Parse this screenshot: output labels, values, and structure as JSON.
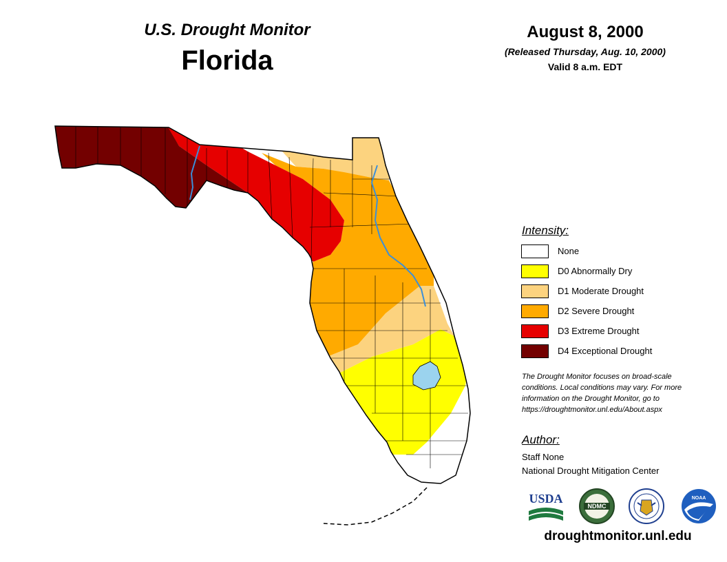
{
  "header": {
    "product_title": "U.S. Drought Monitor",
    "state_name": "Florida",
    "map_date": "August 8, 2000",
    "released": "(Released Thursday, Aug. 10, 2000)",
    "valid": "Valid 8 a.m. EDT"
  },
  "legend": {
    "title": "Intensity:",
    "items": [
      {
        "label": "None",
        "color": "#ffffff"
      },
      {
        "label": "D0 Abnormally Dry",
        "color": "#ffff00"
      },
      {
        "label": "D1 Moderate Drought",
        "color": "#fcd37f"
      },
      {
        "label": "D2 Severe Drought",
        "color": "#ffaa00"
      },
      {
        "label": "D3 Extreme Drought",
        "color": "#e60000"
      },
      {
        "label": "D4 Exceptional Drought",
        "color": "#730000"
      }
    ]
  },
  "note": {
    "line1": "The Drought Monitor focuses on broad-scale",
    "line2": "conditions. Local conditions may vary. For more",
    "line3": "information on the Drought Monitor, go to",
    "line4": "https://droughtmonitor.unl.edu/About.aspx"
  },
  "author": {
    "title": "Author:",
    "name": "Staff None",
    "organization": "National Drought Mitigation Center"
  },
  "logos": {
    "usda": "USDA",
    "ndmc": "NDMC",
    "doc": "commerce-seal",
    "noaa": "NOAA"
  },
  "footer": {
    "url": "droughtmonitor.unl.edu"
  },
  "map_colors": {
    "water": "#9bd3ee",
    "river": "#3b8fd9",
    "outline": "#000000"
  }
}
